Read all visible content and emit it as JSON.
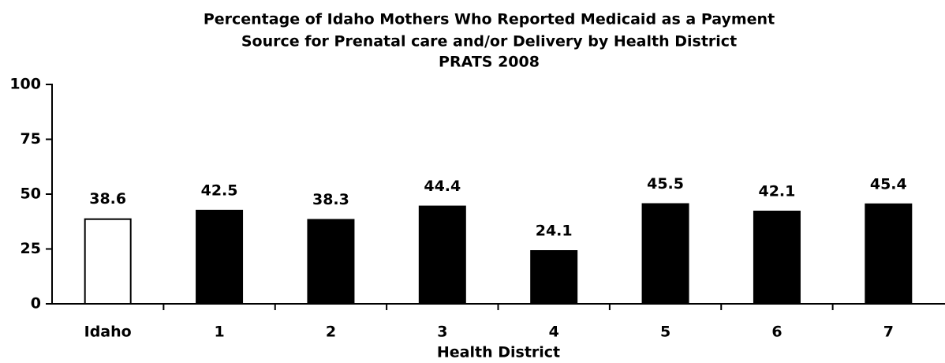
{
  "chart_data": {
    "type": "bar",
    "title": [
      "Percentage of Idaho Mothers Who Reported Medicaid as a Payment",
      "Source for Prenatal care and/or Delivery by Health District",
      "PRATS 2008"
    ],
    "x_label": "Health District",
    "categories": [
      "Idaho",
      "1",
      "2",
      "3",
      "4",
      "5",
      "6",
      "7"
    ],
    "values": [
      38.6,
      42.5,
      38.3,
      44.4,
      24.1,
      45.5,
      42.1,
      45.4
    ],
    "colors": [
      "#ffffff",
      "#000000",
      "#000000",
      "#000000",
      "#000000",
      "#000000",
      "#000000",
      "#000000"
    ],
    "ylim": [
      0,
      100
    ],
    "yticks": [
      0,
      25,
      50,
      75,
      100
    ],
    "grid": false
  }
}
